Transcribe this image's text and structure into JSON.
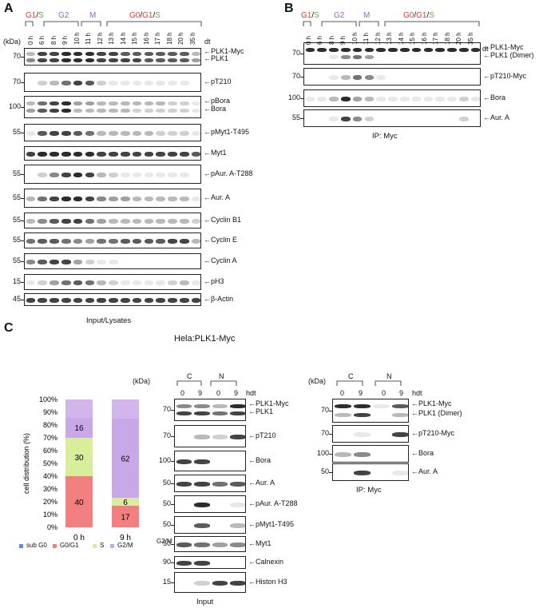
{
  "panels": {
    "A": "A",
    "B": "B",
    "C": "C"
  },
  "colors": {
    "g1s_red": "#e03a3a",
    "g1s_green": "#6aa636",
    "g2_purple": "#9a5fc8",
    "m_purple": "#9a5fc8",
    "g0_red": "#e03a3a"
  },
  "phases_A": {
    "g1": "G1",
    "slash": "/",
    "s": "S",
    "g2": "G2",
    "m": "M",
    "g0": "G0",
    "g1b": "G1",
    "sb": "S"
  },
  "time_points": [
    "0 h",
    "6 h",
    "8 h",
    "9 h",
    "10 h",
    "11 h",
    "12 h",
    "13 h",
    "14 h",
    "15 h",
    "16 h",
    "17 h",
    "18 h",
    "20 h",
    "35 h"
  ],
  "kda_label": "(kDa)",
  "dt_label": "dt",
  "panelA_rows": [
    {
      "mw": "70",
      "labels": [
        "PLK1-Myc",
        "PLK1"
      ]
    },
    {
      "mw": "70",
      "labels": [
        "pT210"
      ]
    },
    {
      "mw": "100",
      "labels": [
        "pBora",
        "Bora"
      ]
    },
    {
      "mw": "55",
      "labels": [
        "pMyt1-T495"
      ]
    },
    {
      "mw": "",
      "labels": [
        "Myt1"
      ]
    },
    {
      "mw": "55",
      "labels": [
        "pAur. A-T288"
      ]
    },
    {
      "mw": "55",
      "labels": [
        "Aur. A"
      ]
    },
    {
      "mw": "55",
      "labels": [
        "Cyclin B1"
      ]
    },
    {
      "mw": "55",
      "labels": [
        "Cyclin E"
      ]
    },
    {
      "mw": "55",
      "labels": [
        "Cyclin A"
      ]
    },
    {
      "mw": "15",
      "labels": [
        "pH3"
      ]
    },
    {
      "mw": "45",
      "labels": [
        "β-Actin"
      ]
    }
  ],
  "panelA_caption": "Input/Lysates",
  "panelB_rows": [
    {
      "mw": "70",
      "labels": [
        "PLK1-Myc",
        "PLK1 (Dimer)"
      ]
    },
    {
      "mw": "70",
      "labels": [
        "pT210-Myc"
      ]
    },
    {
      "mw": "100",
      "labels": [
        "Bora"
      ]
    },
    {
      "mw": "55",
      "labels": [
        "Aur. A"
      ]
    }
  ],
  "panelB_caption": "IP: Myc",
  "panelC_title": "Hela:PLK1-Myc",
  "chart_data": {
    "type": "bar",
    "categories": [
      "0 h",
      "9 h"
    ],
    "ylabel": "cell distribution (%)",
    "yticks": [
      "0%",
      "10%",
      "20%",
      "30%",
      "40%",
      "50%",
      "60%",
      "70%",
      "80%",
      "90%",
      "100%"
    ],
    "ylim": [
      0,
      100
    ],
    "series": [
      {
        "name": "sub G0",
        "values": [
          0,
          0
        ],
        "color": "#5b8fd6"
      },
      {
        "name": "G0/G1",
        "values": [
          40,
          17
        ],
        "color": "#f28080"
      },
      {
        "name": "S",
        "values": [
          30,
          6
        ],
        "color": "#d9ee9a"
      },
      {
        "name": "G2/M",
        "values": [
          16,
          62
        ],
        "color": "#c9a8e8"
      }
    ],
    "data_labels": [
      [
        "",
        "40",
        "30",
        "16"
      ],
      [
        "",
        "17",
        "6",
        "62"
      ]
    ],
    "legend": [
      "sub G0",
      "G0/G1",
      "S",
      "G2/M"
    ]
  },
  "c_groups": {
    "c": "C",
    "n": "N",
    "l0": "0",
    "l9": "9",
    "hdt": "hdt"
  },
  "panelC_mid_rows": [
    {
      "mw": "70",
      "labels": [
        "PLK1-Myc",
        "PLK1"
      ]
    },
    {
      "mw": "70",
      "labels": [
        "pT210"
      ]
    },
    {
      "mw": "100",
      "labels": [
        "Bora"
      ]
    },
    {
      "mw": "50",
      "labels": [
        "Aur. A"
      ]
    },
    {
      "mw": "50",
      "labels": [
        "pAur. A-T288"
      ]
    },
    {
      "mw": "50",
      "labels": [
        "pMyt1-T495"
      ]
    },
    {
      "mw": "50",
      "labels": [
        "Myt1"
      ]
    },
    {
      "mw": "90",
      "labels": [
        "Calnexin"
      ]
    },
    {
      "mw": "15",
      "labels": [
        "Histon H3"
      ]
    }
  ],
  "panelC_mid_caption": "Input",
  "panelC_right_rows": [
    {
      "mw": "70",
      "labels": [
        "PLK1-Myc",
        "PLK1 (Dimer)"
      ]
    },
    {
      "mw": "70",
      "labels": [
        "pT210-Myc"
      ]
    },
    {
      "mw": "100",
      "labels": [
        "Bora"
      ]
    },
    {
      "mw": "50",
      "labels": [
        "Aur. A"
      ]
    }
  ],
  "panelC_right_caption": "IP: Myc",
  "overlap_label": "G2/M"
}
